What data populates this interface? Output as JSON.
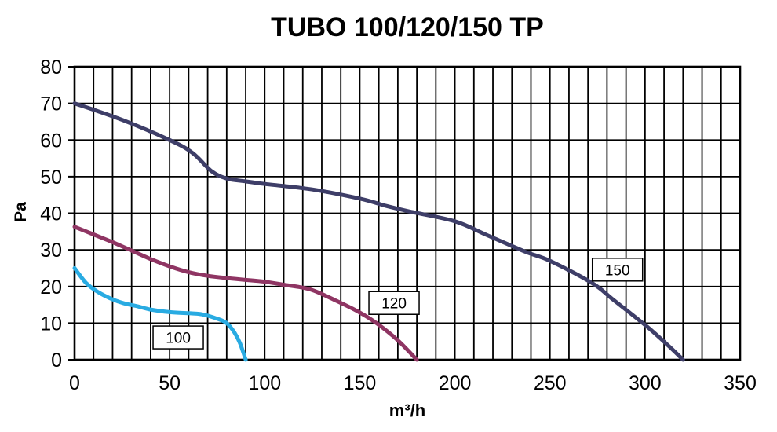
{
  "chart_data": {
    "type": "line",
    "title": "TUBO 100/120/150 TP",
    "xlabel": "m³/h",
    "ylabel": "Pa",
    "xlim": [
      0,
      350
    ],
    "ylim": [
      0,
      80
    ],
    "x_ticks": [
      0,
      50,
      100,
      150,
      200,
      250,
      300,
      350
    ],
    "y_ticks": [
      0,
      10,
      20,
      30,
      40,
      50,
      60,
      70,
      80
    ],
    "x_grid_step": 10,
    "y_grid_step": 10,
    "grid": true,
    "legend_position": "inline-boxes-on-curves",
    "colors": {
      "background": "#ffffff",
      "grid": "#000000",
      "axis": "#000000",
      "text": "#000000",
      "series_150": "#3E3E68",
      "series_120": "#8F3563",
      "series_100": "#29ABE2"
    },
    "series": [
      {
        "name": "150",
        "color": "#3E3E68",
        "label_box": {
          "x": 285.5,
          "y": 24.6,
          "text": "150"
        },
        "points": [
          [
            0,
            70
          ],
          [
            25,
            65.5
          ],
          [
            50,
            60
          ],
          [
            62,
            56.5
          ],
          [
            72,
            51.5
          ],
          [
            80,
            49.5
          ],
          [
            90,
            48.7
          ],
          [
            100,
            48
          ],
          [
            125,
            46.5
          ],
          [
            150,
            44
          ],
          [
            164,
            42
          ],
          [
            176,
            40.5
          ],
          [
            200,
            37.8
          ],
          [
            217,
            34
          ],
          [
            237,
            29.5
          ],
          [
            250,
            27
          ],
          [
            272,
            21
          ],
          [
            283,
            16.5
          ],
          [
            300,
            9.5
          ],
          [
            312,
            4
          ],
          [
            320,
            0
          ]
        ]
      },
      {
        "name": "120",
        "color": "#8F3563",
        "label_box": {
          "x": 168,
          "y": 15.5,
          "text": "120"
        },
        "points": [
          [
            0,
            36.3
          ],
          [
            10,
            34.2
          ],
          [
            20,
            32.1
          ],
          [
            30,
            29.8
          ],
          [
            40,
            27.5
          ],
          [
            50,
            25.5
          ],
          [
            60,
            23.9
          ],
          [
            70,
            22.9
          ],
          [
            80,
            22.3
          ],
          [
            90,
            21.8
          ],
          [
            100,
            21.3
          ],
          [
            111,
            20.4
          ],
          [
            124,
            19.2
          ],
          [
            138,
            16
          ],
          [
            150,
            12.9
          ],
          [
            159,
            9.9
          ],
          [
            170,
            5.3
          ],
          [
            180,
            0
          ]
        ]
      },
      {
        "name": "100",
        "color": "#29ABE2",
        "label_box": {
          "x": 54.5,
          "y": 6.1,
          "text": "100"
        },
        "points": [
          [
            0,
            25
          ],
          [
            6,
            21
          ],
          [
            12,
            18.6
          ],
          [
            19,
            16.7
          ],
          [
            26,
            15.4
          ],
          [
            33,
            14.6
          ],
          [
            40,
            13.7
          ],
          [
            50,
            13
          ],
          [
            60,
            12.7
          ],
          [
            67,
            12.4
          ],
          [
            75,
            11.2
          ],
          [
            80,
            10
          ],
          [
            84,
            7.5
          ],
          [
            87,
            4.5
          ],
          [
            90,
            0
          ]
        ]
      }
    ]
  }
}
